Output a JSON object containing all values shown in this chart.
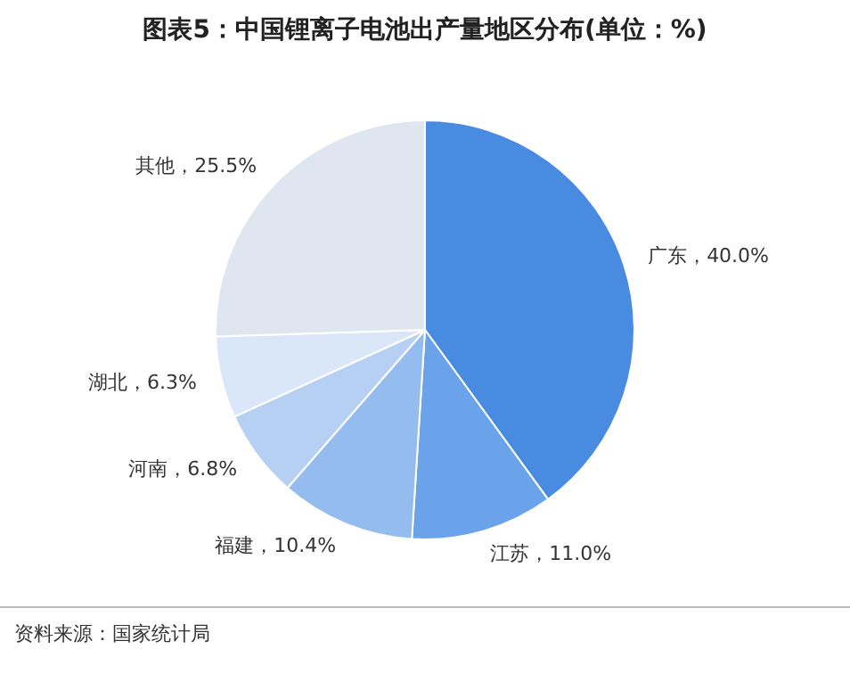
{
  "chart_data": {
    "type": "pie",
    "title": "图表5：中国锂离子电池出产量地区分布(单位：%)",
    "categories": [
      "广东",
      "江苏",
      "福建",
      "河南",
      "湖北",
      "其他"
    ],
    "values": [
      40.0,
      11.0,
      10.4,
      6.8,
      6.3,
      25.5
    ],
    "value_labels": [
      "40.0%",
      "11.0%",
      "10.4%",
      "6.8%",
      "6.3%",
      "25.5%"
    ],
    "colors": [
      "#4a8be2",
      "#6aa3ea",
      "#94bcef",
      "#b6d0f4",
      "#dae7f9",
      "#dfe6f0"
    ],
    "annotations": [
      "资料来源：国家统计局"
    ],
    "legend": false
  }
}
